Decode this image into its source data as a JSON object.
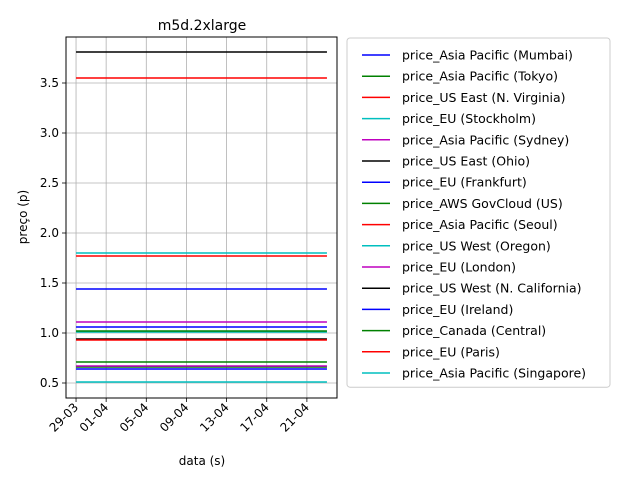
{
  "chart_data": {
    "type": "line",
    "title": "m5d.2xlarge",
    "xlabel": "data (s)",
    "ylabel": "preço (p)",
    "x": [
      "2018-03-29",
      "2018-04-23"
    ],
    "xlim": [
      "2018-03-28",
      "2018-04-24"
    ],
    "x_ticks": [
      {
        "date": "2018-03-29",
        "label": "29-03"
      },
      {
        "date": "2018-04-01",
        "label": "01-04"
      },
      {
        "date": "2018-04-05",
        "label": "05-04"
      },
      {
        "date": "2018-04-09",
        "label": "09-04"
      },
      {
        "date": "2018-04-13",
        "label": "13-04"
      },
      {
        "date": "2018-04-17",
        "label": "17-04"
      },
      {
        "date": "2018-04-21",
        "label": "21-04"
      }
    ],
    "ylim": [
      0.35,
      3.96
    ],
    "y_ticks": [
      0.5,
      1.0,
      1.5,
      2.0,
      2.5,
      3.0,
      3.5
    ],
    "y_tick_labels": [
      "0.5",
      "1.0",
      "1.5",
      "2.0",
      "2.5",
      "3.0",
      "3.5"
    ],
    "grid": true,
    "legend_position": "outside-right",
    "series": [
      {
        "name": "price_Asia Pacific (Mumbai)",
        "color": "#0000ff",
        "values": [
          1.06,
          1.06
        ]
      },
      {
        "name": "price_Asia Pacific (Tokyo)",
        "color": "#008000",
        "values": [
          0.71,
          0.71
        ]
      },
      {
        "name": "price_US East (N. Virginia)",
        "color": "#ff0000",
        "values": [
          3.55,
          3.55
        ]
      },
      {
        "name": "price_EU (Stockholm)",
        "color": "#00bfbf",
        "values": [
          1.01,
          1.01
        ]
      },
      {
        "name": "price_Asia Pacific (Sydney)",
        "color": "#bf00bf",
        "values": [
          1.11,
          1.11
        ]
      },
      {
        "name": "price_US East (Ohio)",
        "color": "#000000",
        "values": [
          3.81,
          3.81
        ]
      },
      {
        "name": "price_EU (Frankfurt)",
        "color": "#0000ff",
        "values": [
          1.44,
          1.44
        ]
      },
      {
        "name": "price_AWS GovCloud (US)",
        "color": "#008000",
        "values": [
          0.66,
          0.66
        ]
      },
      {
        "name": "price_Asia Pacific (Seoul)",
        "color": "#ff0000",
        "values": [
          1.77,
          1.77
        ]
      },
      {
        "name": "price_US West (Oregon)",
        "color": "#00bfbf",
        "values": [
          1.8,
          1.8
        ]
      },
      {
        "name": "price_EU (London)",
        "color": "#bf00bf",
        "values": [
          0.67,
          0.67
        ]
      },
      {
        "name": "price_US West (N. California)",
        "color": "#000000",
        "values": [
          0.94,
          0.94
        ]
      },
      {
        "name": "price_EU (Ireland)",
        "color": "#0000ff",
        "values": [
          0.64,
          0.64
        ]
      },
      {
        "name": "price_Canada (Central)",
        "color": "#008000",
        "values": [
          1.02,
          1.02
        ]
      },
      {
        "name": "price_EU (Paris)",
        "color": "#ff0000",
        "values": [
          0.93,
          0.93
        ]
      },
      {
        "name": "price_Asia Pacific (Singapore)",
        "color": "#00bfbf",
        "values": [
          0.51,
          0.51
        ]
      }
    ]
  }
}
